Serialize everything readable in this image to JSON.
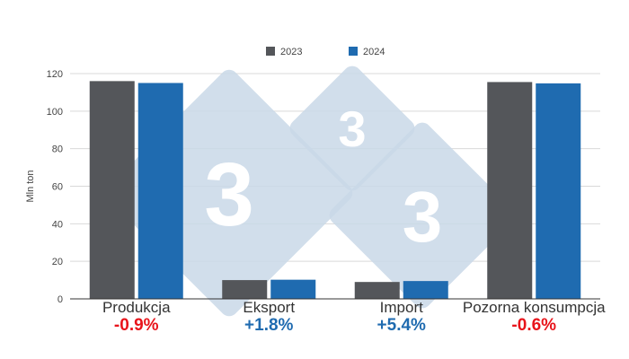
{
  "chart_data": {
    "type": "bar",
    "title": "",
    "xlabel": "",
    "ylabel": "Mln ton",
    "ylim": [
      0,
      120
    ],
    "yticks": [
      0,
      20,
      40,
      60,
      80,
      100,
      120
    ],
    "categories": [
      "Produkcja",
      "Eksport",
      "Import",
      "Pozorna konsumpcja"
    ],
    "series": [
      {
        "name": "2023",
        "values": [
          116,
          10,
          9,
          115.5
        ],
        "color": "#54565a"
      },
      {
        "name": "2024",
        "values": [
          115,
          10.2,
          9.5,
          114.8
        ],
        "color": "#1f6bb0"
      }
    ],
    "changes": [
      "-0.9%",
      "+1.8%",
      "+5.4%",
      "-0.6%"
    ],
    "change_colors": [
      "#e8141b",
      "#1f6bb0",
      "#1f6bb0",
      "#e8141b"
    ],
    "legend_position": "top",
    "grid": true
  },
  "watermark": {
    "logo_text": "3",
    "color": "#c9d8e8"
  }
}
